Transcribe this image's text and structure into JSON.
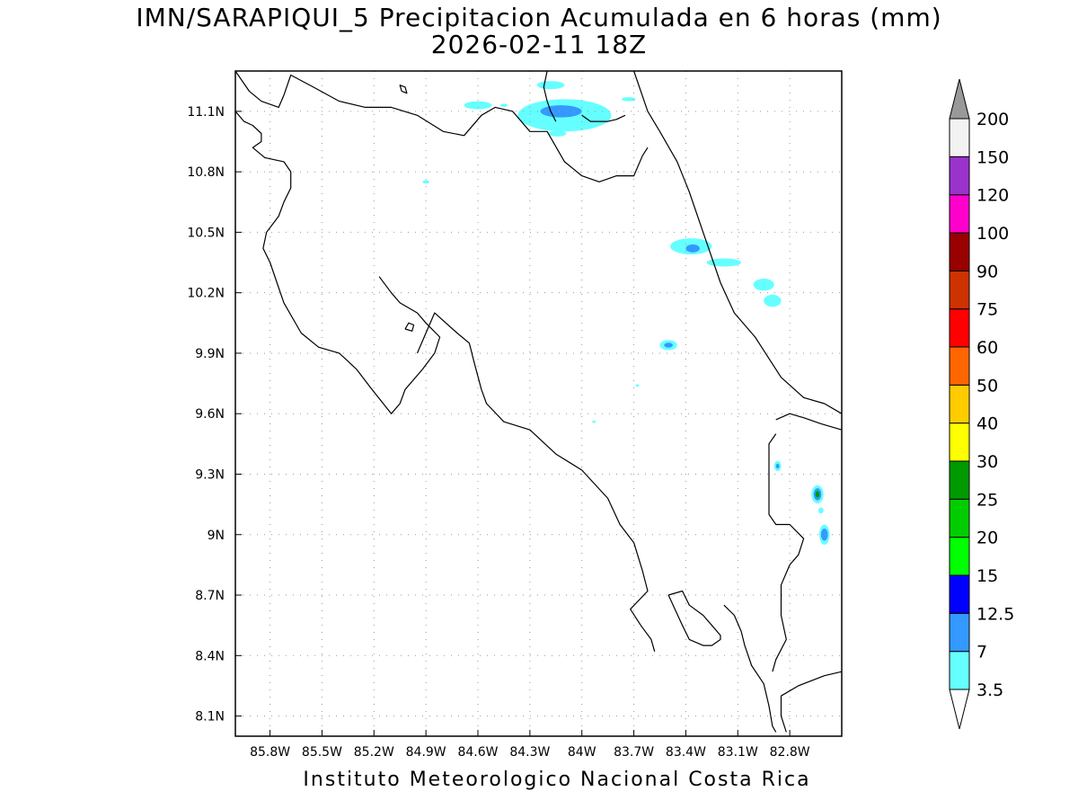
{
  "map": {
    "title": "IMN/SARAPIQUI_5 Precipitacion Acumulada en 6 horas (mm)",
    "datetime": "2026-02-11 18Z",
    "footer": "Instituto Meteorologico Nacional Costa Rica",
    "region": "Costa Rica",
    "lon_range": [
      -86.0,
      -82.5
    ],
    "lat_range": [
      8.0,
      11.3
    ],
    "grid": true,
    "lat_ticks": [
      {
        "value": 11.1,
        "label": "11.1N"
      },
      {
        "value": 10.8,
        "label": "10.8N"
      },
      {
        "value": 10.5,
        "label": "10.5N"
      },
      {
        "value": 10.2,
        "label": "10.2N"
      },
      {
        "value": 9.9,
        "label": "9.9N"
      },
      {
        "value": 9.6,
        "label": "9.6N"
      },
      {
        "value": 9.3,
        "label": "9.3N"
      },
      {
        "value": 9.0,
        "label": "9N"
      },
      {
        "value": 8.7,
        "label": "8.7N"
      },
      {
        "value": 8.4,
        "label": "8.4N"
      },
      {
        "value": 8.1,
        "label": "8.1N"
      }
    ],
    "lon_ticks": [
      {
        "value": -85.8,
        "label": "85.8W"
      },
      {
        "value": -85.5,
        "label": "85.5W"
      },
      {
        "value": -85.2,
        "label": "85.2W"
      },
      {
        "value": -84.9,
        "label": "84.9W"
      },
      {
        "value": -84.6,
        "label": "84.6W"
      },
      {
        "value": -84.3,
        "label": "84.3W"
      },
      {
        "value": -84.0,
        "label": "84W"
      },
      {
        "value": -83.7,
        "label": "83.7W"
      },
      {
        "value": -83.4,
        "label": "83.4W"
      },
      {
        "value": -83.1,
        "label": "83.1W"
      },
      {
        "value": -82.8,
        "label": "82.8W"
      }
    ]
  },
  "colorbar": {
    "labels": [
      "3.5",
      "7",
      "12.5",
      "15",
      "20",
      "25",
      "30",
      "40",
      "50",
      "60",
      "75",
      "90",
      "100",
      "120",
      "150",
      "200"
    ],
    "colors": [
      "#66ffff",
      "#3399ff",
      "#0000ff",
      "#00ff00",
      "#00cc00",
      "#009900",
      "#ffff00",
      "#ffcc00",
      "#ff6600",
      "#ff0000",
      "#cc3300",
      "#990000",
      "#ff00cc",
      "#9933cc",
      "#f2f2f2",
      "#999999"
    ]
  },
  "precip_areas": [
    {
      "lon": -84.1,
      "lat": 11.08,
      "rx": 0.27,
      "ry": 0.08,
      "level": "3.5"
    },
    {
      "lon": -84.12,
      "lat": 11.1,
      "rx": 0.12,
      "ry": 0.03,
      "level": "7"
    },
    {
      "lon": -84.18,
      "lat": 11.23,
      "rx": 0.08,
      "ry": 0.02,
      "level": "3.5"
    },
    {
      "lon": -84.6,
      "lat": 11.13,
      "rx": 0.08,
      "ry": 0.02,
      "level": "3.5"
    },
    {
      "lon": -84.14,
      "lat": 10.99,
      "rx": 0.05,
      "ry": 0.015,
      "level": "3.5"
    },
    {
      "lon": -83.73,
      "lat": 11.16,
      "rx": 0.04,
      "ry": 0.01,
      "level": "3.5"
    },
    {
      "lon": -83.37,
      "lat": 10.43,
      "rx": 0.12,
      "ry": 0.04,
      "level": "3.5"
    },
    {
      "lon": -83.36,
      "lat": 10.42,
      "rx": 0.04,
      "ry": 0.02,
      "level": "7"
    },
    {
      "lon": -83.18,
      "lat": 10.35,
      "rx": 0.1,
      "ry": 0.02,
      "level": "3.5"
    },
    {
      "lon": -82.95,
      "lat": 10.24,
      "rx": 0.06,
      "ry": 0.03,
      "level": "3.5"
    },
    {
      "lon": -82.9,
      "lat": 10.16,
      "rx": 0.05,
      "ry": 0.03,
      "level": "3.5"
    },
    {
      "lon": -83.5,
      "lat": 9.94,
      "rx": 0.05,
      "ry": 0.025,
      "level": "3.5"
    },
    {
      "lon": -83.5,
      "lat": 9.94,
      "rx": 0.025,
      "ry": 0.012,
      "level": "7"
    },
    {
      "lon": -82.87,
      "lat": 9.34,
      "rx": 0.02,
      "ry": 0.025,
      "level": "3.5"
    },
    {
      "lon": -82.87,
      "lat": 9.34,
      "rx": 0.01,
      "ry": 0.012,
      "level": "7"
    },
    {
      "lon": -82.64,
      "lat": 9.2,
      "rx": 0.035,
      "ry": 0.045,
      "level": "3.5"
    },
    {
      "lon": -82.64,
      "lat": 9.2,
      "rx": 0.022,
      "ry": 0.03,
      "level": "7"
    },
    {
      "lon": -82.64,
      "lat": 9.2,
      "rx": 0.012,
      "ry": 0.016,
      "level": "25"
    },
    {
      "lon": -82.6,
      "lat": 9.0,
      "rx": 0.03,
      "ry": 0.05,
      "level": "3.5"
    },
    {
      "lon": -82.6,
      "lat": 9.0,
      "rx": 0.02,
      "ry": 0.03,
      "level": "7"
    },
    {
      "lon": -82.62,
      "lat": 9.12,
      "rx": 0.015,
      "ry": 0.015,
      "level": "3.5"
    },
    {
      "lon": -84.45,
      "lat": 11.13,
      "rx": 0.02,
      "ry": 0.008,
      "level": "3.5"
    },
    {
      "lon": -84.9,
      "lat": 10.75,
      "rx": 0.02,
      "ry": 0.008,
      "level": "3.5"
    },
    {
      "lon": -83.93,
      "lat": 9.56,
      "rx": 0.01,
      "ry": 0.006,
      "level": "3.5"
    },
    {
      "lon": -83.68,
      "lat": 9.74,
      "rx": 0.01,
      "ry": 0.006,
      "level": "3.5"
    }
  ],
  "coastlines": [
    [
      [
        -86.0,
        11.1
      ],
      [
        -85.95,
        11.05
      ],
      [
        -85.9,
        11.03
      ],
      [
        -85.85,
        10.99
      ],
      [
        -85.85,
        10.95
      ],
      [
        -85.9,
        10.92
      ],
      [
        -85.83,
        10.87
      ],
      [
        -85.72,
        10.85
      ],
      [
        -85.68,
        10.8
      ],
      [
        -85.68,
        10.72
      ],
      [
        -85.72,
        10.65
      ],
      [
        -85.75,
        10.58
      ],
      [
        -85.82,
        10.5
      ],
      [
        -85.84,
        10.42
      ],
      [
        -85.8,
        10.35
      ],
      [
        -85.76,
        10.25
      ],
      [
        -85.72,
        10.15
      ],
      [
        -85.62,
        10.0
      ],
      [
        -85.52,
        9.93
      ],
      [
        -85.4,
        9.9
      ],
      [
        -85.3,
        9.82
      ],
      [
        -85.22,
        9.73
      ],
      [
        -85.1,
        9.6
      ],
      [
        -85.05,
        9.65
      ],
      [
        -85.02,
        9.72
      ],
      [
        -84.92,
        9.82
      ],
      [
        -84.85,
        9.9
      ],
      [
        -84.82,
        9.98
      ],
      [
        -84.9,
        10.05
      ],
      [
        -84.95,
        10.1
      ],
      [
        -85.05,
        10.15
      ],
      [
        -85.1,
        10.2
      ],
      [
        -85.17,
        10.28
      ]
    ],
    [
      [
        -84.95,
        9.9
      ],
      [
        -84.9,
        10.0
      ],
      [
        -84.85,
        10.1
      ],
      [
        -84.72,
        10.0
      ],
      [
        -84.65,
        9.95
      ],
      [
        -84.62,
        9.85
      ],
      [
        -84.58,
        9.72
      ],
      [
        -84.55,
        9.65
      ],
      [
        -84.45,
        9.56
      ],
      [
        -84.3,
        9.52
      ],
      [
        -84.15,
        9.4
      ],
      [
        -84.0,
        9.32
      ],
      [
        -83.85,
        9.18
      ],
      [
        -83.78,
        9.05
      ],
      [
        -83.7,
        8.96
      ],
      [
        -83.65,
        8.82
      ],
      [
        -83.62,
        8.72
      ],
      [
        -83.72,
        8.63
      ],
      [
        -83.66,
        8.55
      ],
      [
        -83.6,
        8.48
      ],
      [
        -83.58,
        8.42
      ]
    ],
    [
      [
        -83.5,
        8.7
      ],
      [
        -83.42,
        8.72
      ],
      [
        -83.38,
        8.65
      ],
      [
        -83.3,
        8.6
      ],
      [
        -83.25,
        8.55
      ],
      [
        -83.2,
        8.5
      ],
      [
        -83.2,
        8.48
      ],
      [
        -83.25,
        8.45
      ],
      [
        -83.3,
        8.45
      ],
      [
        -83.38,
        8.48
      ],
      [
        -83.42,
        8.55
      ],
      [
        -83.5,
        8.7
      ]
    ],
    [
      [
        -83.18,
        8.65
      ],
      [
        -83.12,
        8.6
      ],
      [
        -83.08,
        8.52
      ],
      [
        -83.06,
        8.45
      ],
      [
        -83.02,
        8.35
      ],
      [
        -82.95,
        8.26
      ],
      [
        -82.92,
        8.15
      ],
      [
        -82.9,
        8.05
      ],
      [
        -82.88,
        8.02
      ]
    ],
    [
      [
        -82.82,
        8.02
      ],
      [
        -82.85,
        8.1
      ],
      [
        -82.85,
        8.2
      ],
      [
        -82.75,
        8.25
      ],
      [
        -82.6,
        8.3
      ],
      [
        -82.5,
        8.32
      ]
    ],
    [
      [
        -82.5,
        9.6
      ],
      [
        -82.6,
        9.65
      ],
      [
        -82.72,
        9.68
      ],
      [
        -82.85,
        9.78
      ],
      [
        -83.0,
        9.98
      ],
      [
        -83.12,
        10.1
      ],
      [
        -83.2,
        10.25
      ],
      [
        -83.3,
        10.5
      ],
      [
        -83.38,
        10.7
      ],
      [
        -83.45,
        10.85
      ],
      [
        -83.55,
        11.0
      ],
      [
        -83.62,
        11.1
      ],
      [
        -83.7,
        11.3
      ]
    ],
    [
      [
        -83.75,
        11.08
      ],
      [
        -83.8,
        11.06
      ],
      [
        -83.85,
        11.05
      ],
      [
        -83.95,
        11.05
      ],
      [
        -84.0,
        11.08
      ]
    ],
    [
      [
        -86.0,
        11.3
      ],
      [
        -85.92,
        11.2
      ],
      [
        -85.85,
        11.15
      ],
      [
        -85.75,
        11.12
      ],
      [
        -85.72,
        11.18
      ],
      [
        -85.68,
        11.28
      ],
      [
        -85.55,
        11.22
      ],
      [
        -85.4,
        11.15
      ],
      [
        -85.25,
        11.12
      ],
      [
        -85.1,
        11.12
      ],
      [
        -84.95,
        11.08
      ],
      [
        -84.8,
        11.0
      ],
      [
        -84.68,
        10.98
      ],
      [
        -84.58,
        11.08
      ],
      [
        -84.5,
        11.12
      ],
      [
        -84.4,
        11.1
      ],
      [
        -84.3,
        11.0
      ],
      [
        -84.2,
        11.0
      ],
      [
        -84.1,
        10.85
      ],
      [
        -84.0,
        10.78
      ],
      [
        -83.9,
        10.75
      ],
      [
        -83.8,
        10.78
      ],
      [
        -83.7,
        10.78
      ],
      [
        -83.65,
        10.88
      ],
      [
        -83.62,
        10.92
      ]
    ],
    [
      [
        -84.2,
        11.3
      ],
      [
        -84.22,
        11.22
      ],
      [
        -84.2,
        11.15
      ],
      [
        -84.18,
        11.1
      ],
      [
        -84.15,
        11.05
      ]
    ],
    [
      [
        -82.88,
        9.57
      ],
      [
        -82.8,
        9.6
      ],
      [
        -82.72,
        9.58
      ],
      [
        -82.62,
        9.55
      ],
      [
        -82.5,
        9.52
      ]
    ],
    [
      [
        -82.88,
        9.5
      ],
      [
        -82.92,
        9.45
      ],
      [
        -82.92,
        9.3
      ],
      [
        -82.92,
        9.15
      ],
      [
        -82.92,
        9.1
      ],
      [
        -82.88,
        9.05
      ],
      [
        -82.8,
        9.05
      ],
      [
        -82.72,
        8.98
      ],
      [
        -82.75,
        8.9
      ],
      [
        -82.8,
        8.85
      ],
      [
        -82.85,
        8.75
      ],
      [
        -82.85,
        8.6
      ],
      [
        -82.82,
        8.48
      ],
      [
        -82.88,
        8.38
      ],
      [
        -82.9,
        8.32
      ]
    ],
    [
      [
        -85.02,
        10.02
      ],
      [
        -85.0,
        10.05
      ],
      [
        -84.97,
        10.04
      ],
      [
        -84.98,
        10.01
      ],
      [
        -85.02,
        10.02
      ]
    ],
    [
      [
        -85.04,
        11.2
      ],
      [
        -85.05,
        11.23
      ],
      [
        -85.02,
        11.22
      ],
      [
        -85.01,
        11.19
      ],
      [
        -85.04,
        11.2
      ]
    ]
  ]
}
